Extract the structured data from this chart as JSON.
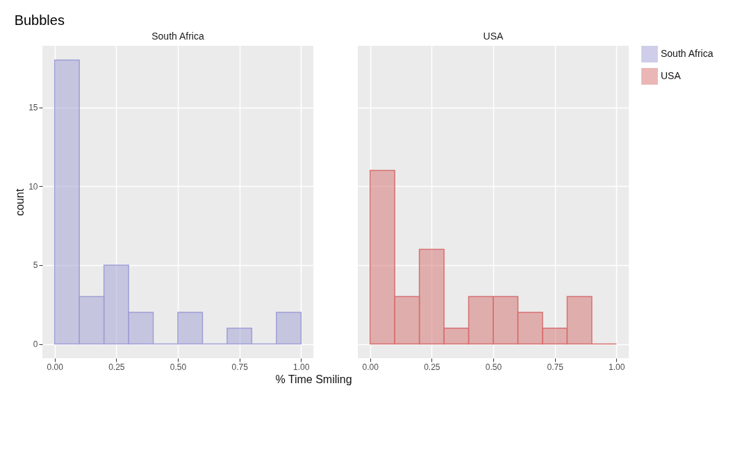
{
  "chart_data": [
    {
      "type": "histogram",
      "title": "Bubbles",
      "subtitle": "South Africa",
      "xlabel": "% Time Smiling",
      "ylabel": "count",
      "bins": [
        0,
        0.1,
        0.2,
        0.3,
        0.4,
        0.5,
        0.6,
        0.7,
        0.8,
        0.9,
        1.0
      ],
      "series": [
        {
          "name": "South Africa",
          "color": "#9f9fd6",
          "values": [
            18,
            3,
            5,
            2,
            0,
            2,
            0,
            1,
            0,
            2
          ]
        }
      ],
      "xlim": [
        -0.05,
        1.05
      ],
      "xticks": [
        {
          "value": 0,
          "label": "0.00"
        },
        {
          "value": 0.25,
          "label": "0.25"
        },
        {
          "value": 0.5,
          "label": "0.50"
        },
        {
          "value": 0.75,
          "label": "0.75"
        },
        {
          "value": 1,
          "label": "1.00"
        }
      ],
      "ylim": [
        -0.9,
        18.9
      ],
      "yticks": [
        0,
        5,
        10,
        15
      ],
      "grid": true,
      "legend": "right"
    },
    {
      "type": "histogram",
      "subtitle": "USA",
      "bins": [
        0,
        0.1,
        0.2,
        0.3,
        0.4,
        0.5,
        0.6,
        0.7,
        0.8,
        0.9,
        1.0
      ],
      "series": [
        {
          "name": "USA",
          "color": "#d67070",
          "values": [
            11,
            3,
            6,
            1,
            3,
            3,
            2,
            1,
            3,
            0
          ]
        }
      ],
      "xlim": [
        -0.05,
        1.05
      ],
      "xticks": [
        {
          "value": 0,
          "label": "0.00"
        },
        {
          "value": 0.25,
          "label": "0.25"
        },
        {
          "value": 0.5,
          "label": "0.50"
        },
        {
          "value": 0.75,
          "label": "0.75"
        },
        {
          "value": 1,
          "label": "1.00"
        }
      ],
      "ylim": [
        -0.9,
        18.9
      ],
      "yticks": [
        0,
        5,
        10,
        15
      ],
      "grid": true,
      "legend": "right",
      "tick_labels": "x"
    }
  ]
}
